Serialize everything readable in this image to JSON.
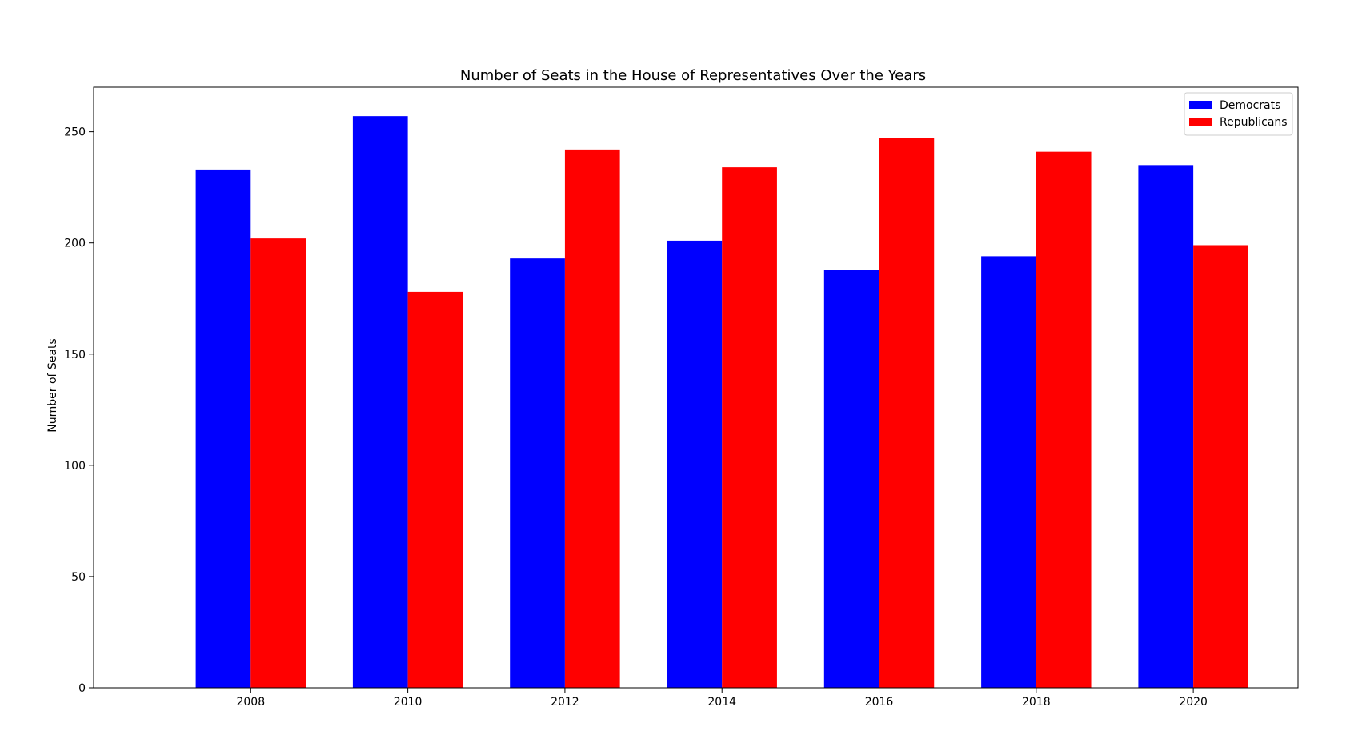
{
  "chart_data": {
    "type": "bar",
    "title": "Number of Seats in the House of Representatives Over the Years",
    "xlabel": "",
    "ylabel": "Number of Seats",
    "categories": [
      "2008",
      "2010",
      "2012",
      "2014",
      "2016",
      "2018",
      "2020"
    ],
    "series": [
      {
        "name": "Democrats",
        "color": "#0000ff",
        "values": [
          233,
          257,
          193,
          201,
          188,
          194,
          235
        ]
      },
      {
        "name": "Republicans",
        "color": "#ff0000",
        "values": [
          202,
          178,
          242,
          234,
          247,
          241,
          199
        ]
      }
    ],
    "yticks": [
      0,
      50,
      100,
      150,
      200,
      250
    ],
    "ylim": [
      0,
      270
    ],
    "grid": false,
    "legend_position": "top-right"
  }
}
